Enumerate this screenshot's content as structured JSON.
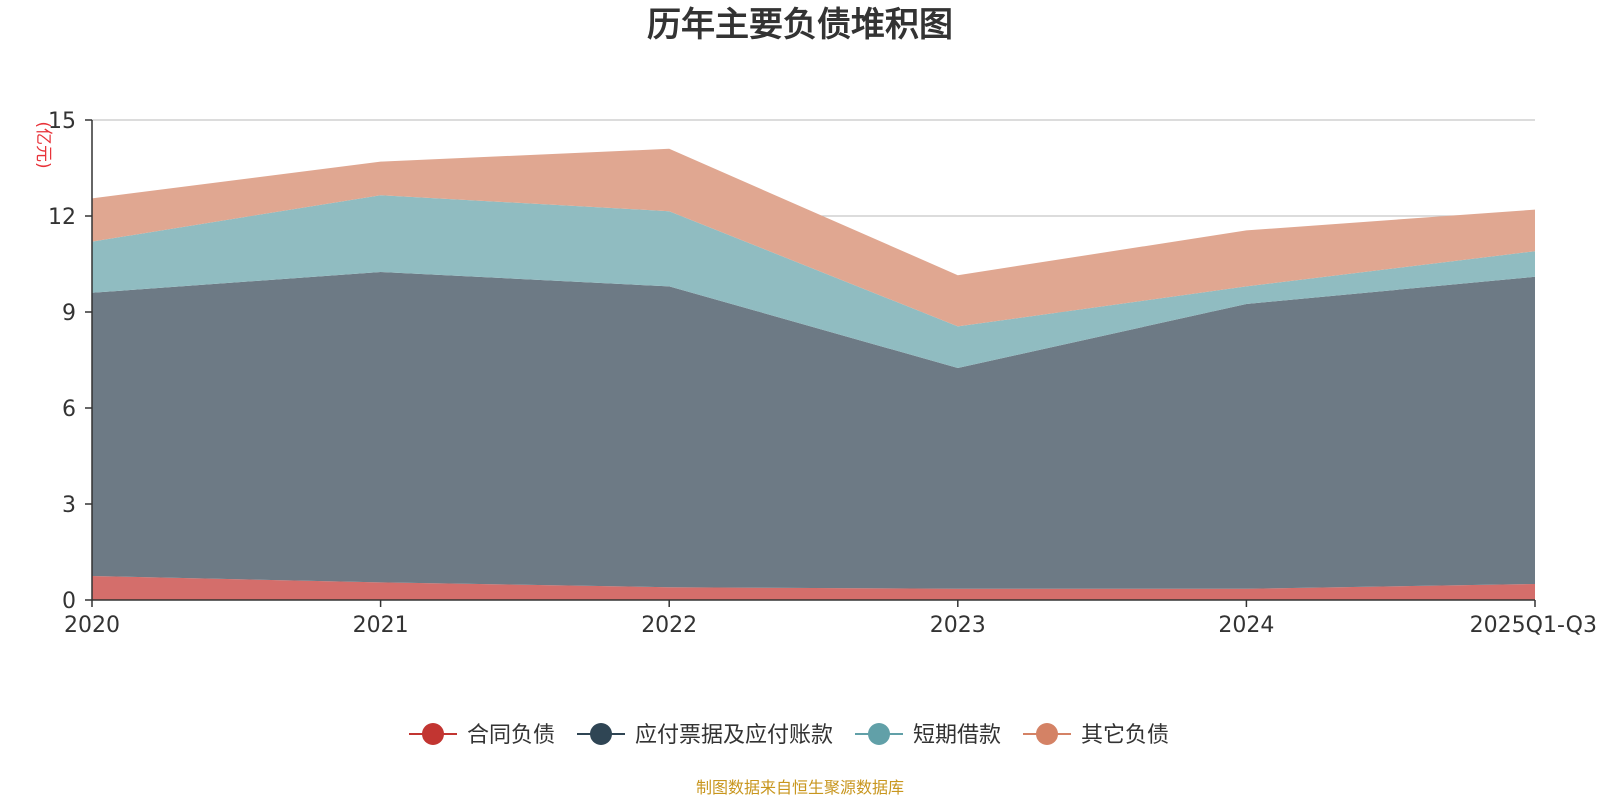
{
  "chart_data": {
    "type": "area",
    "stacked": true,
    "title": "历年主要负债堆积图",
    "ylabel": "亿元",
    "ylabel_display": "(亿元)",
    "ylim": [
      0,
      15
    ],
    "yticks": [
      "0",
      "3",
      "6",
      "9",
      "12",
      "15"
    ],
    "categories": [
      "2020",
      "2021",
      "2022",
      "2023",
      "2024",
      "2025Q1-Q3"
    ],
    "series": [
      {
        "name": "合同负债",
        "color": "#c23531",
        "fill": "#d46e6b",
        "values": [
          0.75,
          0.55,
          0.4,
          0.35,
          0.35,
          0.5
        ]
      },
      {
        "name": "应付票据及应付账款",
        "color": "#2f4554",
        "fill": "#6d7a85",
        "values": [
          8.85,
          9.7,
          9.4,
          6.9,
          8.9,
          9.6
        ]
      },
      {
        "name": "短期借款",
        "color": "#61a0a8",
        "fill": "#90bcc1",
        "values": [
          1.6,
          2.4,
          2.35,
          1.3,
          0.55,
          0.8
        ]
      },
      {
        "name": "其它负债",
        "color": "#d48265",
        "fill": "#e0a791",
        "values": [
          1.35,
          1.05,
          1.95,
          1.6,
          1.75,
          1.3
        ]
      }
    ],
    "grid": true,
    "legend_position": "bottom"
  },
  "source_note": "制图数据来自恒生聚源数据库"
}
